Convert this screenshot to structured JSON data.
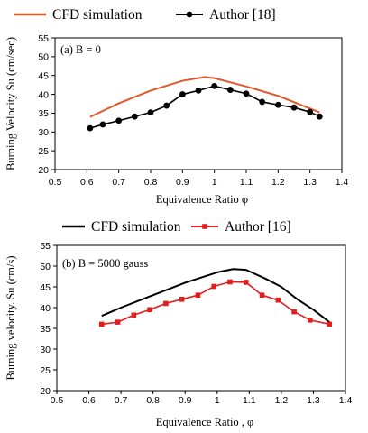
{
  "chart_data": [
    {
      "type": "line",
      "annotation": "(a) B = 0",
      "xlabel": "Equivalence Ratio φ",
      "ylabel": "Burning Velocity Su (cm/sec)",
      "xlim": [
        0.5,
        1.4
      ],
      "ylim": [
        20,
        55
      ],
      "x_ticks": [
        "0.5",
        "0.6",
        "0.7",
        "0.8",
        "0.9",
        "1",
        "1.1",
        "1.2",
        "1.3",
        "1.4"
      ],
      "y_ticks": [
        "20",
        "25",
        "30",
        "35",
        "40",
        "45",
        "50",
        "55"
      ],
      "legend_position": "top",
      "grid": false,
      "series": [
        {
          "name": "CFD simulation",
          "color": "#e3582a",
          "marker": "none",
          "x": [
            0.61,
            0.7,
            0.8,
            0.9,
            0.97,
            1.0,
            1.1,
            1.2,
            1.33
          ],
          "y": [
            34.0,
            37.6,
            41.0,
            43.6,
            44.6,
            44.3,
            42.1,
            39.6,
            35.2
          ]
        },
        {
          "name": "Author [18]",
          "color": "#000000",
          "marker": "circle",
          "x": [
            0.61,
            0.65,
            0.7,
            0.75,
            0.8,
            0.85,
            0.9,
            0.95,
            1.0,
            1.05,
            1.1,
            1.15,
            1.2,
            1.25,
            1.3,
            1.33
          ],
          "y": [
            31.0,
            32.0,
            33.0,
            34.1,
            35.2,
            37.0,
            40.0,
            41.0,
            42.2,
            41.2,
            40.2,
            38.0,
            37.2,
            36.5,
            35.3,
            34.1
          ]
        }
      ]
    },
    {
      "type": "line",
      "annotation": "(b) B = 5000 gauss",
      "xlabel": "Equivalence Ratio , φ",
      "ylabel": "Burning velocity. Su (cm/s)",
      "xlim": [
        0.5,
        1.4
      ],
      "ylim": [
        20,
        55
      ],
      "x_ticks": [
        "0.5",
        "0.6",
        "0.7",
        "0.8",
        "0.9",
        "1",
        "1.1",
        "1.2",
        "1.3",
        "1.4"
      ],
      "y_ticks": [
        "20",
        "25",
        "30",
        "35",
        "40",
        "45",
        "50",
        "55"
      ],
      "legend_position": "top",
      "grid": false,
      "series": [
        {
          "name": "CFD simulation",
          "color": "#000000",
          "marker": "none",
          "x": [
            0.64,
            0.7,
            0.8,
            0.9,
            1.0,
            1.05,
            1.09,
            1.15,
            1.2,
            1.25,
            1.3,
            1.35
          ],
          "y": [
            38.0,
            40.0,
            43.0,
            46.0,
            48.5,
            49.3,
            49.1,
            47.0,
            45.0,
            42.0,
            39.5,
            36.5
          ]
        },
        {
          "name": "Author [16]",
          "color": "#e21d1d",
          "marker": "square",
          "x": [
            0.64,
            0.69,
            0.74,
            0.79,
            0.84,
            0.89,
            0.94,
            0.99,
            1.04,
            1.09,
            1.14,
            1.19,
            1.24,
            1.29,
            1.35
          ],
          "y": [
            36.0,
            36.5,
            38.2,
            39.5,
            41.0,
            42.0,
            43.0,
            45.1,
            46.2,
            46.1,
            43.0,
            41.8,
            39.0,
            37.0,
            36.0
          ]
        }
      ]
    }
  ]
}
